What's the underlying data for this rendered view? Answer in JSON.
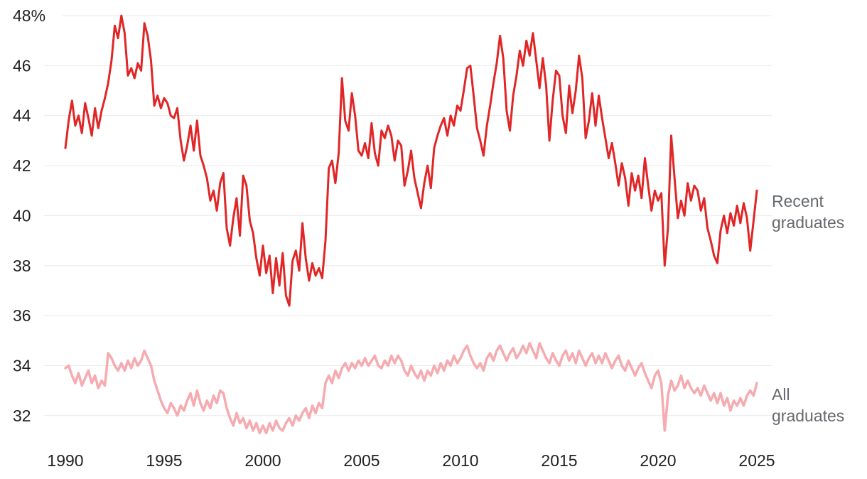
{
  "chart_data": {
    "type": "line",
    "x_start": 1990,
    "x_step": 0.1666667,
    "xlim": [
      1990,
      2025
    ],
    "ylim": [
      31,
      48.1
    ],
    "grid": true,
    "legend_position": "right-of-line",
    "x_ticks": [
      1990,
      1995,
      2000,
      2005,
      2010,
      2015,
      2020,
      2025
    ],
    "y_ticks": [
      {
        "value": 32,
        "label": "32"
      },
      {
        "value": 34,
        "label": "34"
      },
      {
        "value": 36,
        "label": "36"
      },
      {
        "value": 38,
        "label": "38"
      },
      {
        "value": 40,
        "label": "40"
      },
      {
        "value": 42,
        "label": "42"
      },
      {
        "value": 44,
        "label": "44"
      },
      {
        "value": 46,
        "label": "46"
      },
      {
        "value": 48,
        "label": "48%"
      }
    ],
    "colors": {
      "grid": "#e9e9e9",
      "axis_text": "#222222",
      "label_text": "#66696d"
    },
    "series": [
      {
        "name": "Recent graduates",
        "legend_lines": [
          "Recent",
          "graduates"
        ],
        "color": "#e02626",
        "width": 3,
        "values": [
          42.7,
          43.8,
          44.6,
          43.6,
          44.0,
          43.3,
          44.5,
          43.9,
          43.2,
          44.3,
          43.5,
          44.2,
          44.7,
          45.3,
          46.2,
          47.6,
          47.1,
          48.0,
          47.3,
          45.6,
          45.9,
          45.5,
          46.1,
          45.8,
          47.7,
          47.2,
          46.2,
          44.4,
          44.8,
          44.3,
          44.7,
          44.5,
          44.0,
          43.9,
          44.3,
          43.0,
          42.2,
          42.8,
          43.6,
          42.6,
          43.8,
          42.4,
          42.0,
          41.5,
          40.6,
          41.0,
          40.2,
          41.3,
          41.7,
          39.5,
          38.8,
          39.9,
          40.7,
          39.2,
          41.6,
          41.2,
          39.8,
          39.3,
          38.3,
          37.6,
          38.8,
          37.7,
          38.4,
          36.9,
          38.3,
          37.2,
          38.5,
          36.8,
          36.4,
          38.2,
          38.6,
          37.8,
          39.7,
          38.3,
          37.4,
          38.1,
          37.6,
          37.9,
          37.5,
          39.0,
          41.9,
          42.2,
          41.3,
          42.5,
          45.5,
          43.8,
          43.4,
          44.9,
          44.0,
          42.6,
          42.4,
          42.9,
          42.3,
          43.7,
          42.5,
          42.0,
          43.4,
          43.1,
          43.6,
          43.2,
          42.2,
          43.0,
          42.8,
          41.2,
          41.8,
          42.6,
          41.5,
          40.9,
          40.3,
          41.3,
          42.0,
          41.1,
          42.7,
          43.2,
          43.6,
          43.9,
          43.2,
          44.0,
          43.6,
          44.4,
          44.2,
          45.0,
          45.9,
          46.0,
          44.8,
          43.5,
          43.0,
          42.4,
          43.6,
          44.4,
          45.3,
          46.1,
          47.2,
          46.3,
          44.2,
          43.4,
          44.8,
          45.6,
          46.6,
          46.0,
          47.0,
          46.4,
          47.3,
          46.2,
          45.1,
          46.3,
          45.2,
          43.0,
          44.6,
          45.8,
          45.6,
          44.0,
          43.3,
          45.2,
          44.1,
          45.0,
          46.4,
          45.5,
          43.1,
          43.8,
          44.9,
          43.6,
          44.8,
          43.9,
          43.1,
          42.3,
          42.9,
          42.1,
          41.2,
          42.1,
          41.5,
          40.4,
          41.7,
          41.0,
          41.6,
          40.7,
          42.3,
          41.2,
          40.2,
          41.0,
          40.6,
          40.9,
          38.0,
          39.5,
          43.2,
          41.5,
          39.9,
          40.6,
          40.0,
          41.3,
          40.6,
          41.2,
          41.0,
          40.2,
          40.7,
          39.5,
          39.0,
          38.4,
          38.1,
          39.4,
          40.0,
          39.3,
          40.1,
          39.6,
          40.4,
          39.7,
          40.5,
          39.9,
          38.6,
          39.8,
          41.0
        ]
      },
      {
        "name": "All graduates",
        "legend_lines": [
          "All",
          "graduates"
        ],
        "color": "#f5abb0",
        "width": 3.5,
        "values": [
          33.9,
          34.0,
          33.6,
          33.3,
          33.7,
          33.2,
          33.5,
          33.8,
          33.3,
          33.6,
          33.1,
          33.4,
          33.2,
          34.5,
          34.3,
          34.0,
          33.8,
          34.1,
          33.8,
          34.2,
          33.9,
          34.3,
          34.0,
          34.2,
          34.6,
          34.3,
          34.0,
          33.4,
          33.0,
          32.6,
          32.3,
          32.1,
          32.5,
          32.3,
          32.0,
          32.4,
          32.2,
          32.6,
          32.9,
          32.4,
          33.0,
          32.5,
          32.2,
          32.6,
          32.3,
          32.8,
          32.5,
          33.0,
          32.9,
          32.3,
          31.9,
          31.6,
          32.1,
          31.7,
          31.9,
          31.5,
          31.8,
          31.4,
          31.7,
          31.3,
          31.6,
          31.3,
          31.7,
          31.4,
          31.8,
          31.5,
          31.4,
          31.7,
          31.9,
          31.6,
          32.0,
          31.8,
          32.1,
          32.3,
          31.9,
          32.4,
          32.1,
          32.5,
          32.3,
          33.3,
          33.6,
          33.3,
          33.8,
          33.5,
          33.9,
          34.1,
          33.8,
          34.1,
          33.9,
          34.2,
          34.0,
          34.3,
          34.0,
          34.2,
          34.4,
          34.0,
          33.9,
          34.2,
          34.0,
          34.4,
          34.1,
          34.4,
          34.2,
          33.8,
          33.6,
          34.0,
          33.7,
          33.5,
          33.8,
          33.4,
          33.8,
          33.6,
          34.0,
          33.7,
          34.1,
          33.8,
          34.2,
          34.0,
          34.4,
          34.1,
          34.3,
          34.6,
          34.8,
          34.4,
          34.1,
          33.9,
          34.1,
          33.8,
          34.3,
          34.5,
          34.2,
          34.6,
          34.8,
          34.5,
          34.2,
          34.5,
          34.7,
          34.3,
          34.5,
          34.8,
          34.5,
          34.9,
          34.6,
          34.3,
          34.9,
          34.6,
          34.3,
          34.1,
          34.5,
          34.2,
          34.0,
          34.4,
          34.6,
          34.2,
          34.5,
          34.1,
          34.6,
          34.3,
          34.0,
          34.3,
          34.5,
          34.1,
          34.4,
          34.1,
          34.5,
          34.2,
          33.9,
          34.2,
          34.4,
          34.0,
          33.8,
          34.2,
          33.9,
          33.6,
          33.9,
          34.1,
          33.7,
          33.4,
          33.1,
          33.6,
          33.8,
          33.3,
          31.4,
          32.8,
          33.4,
          33.0,
          33.2,
          33.6,
          33.1,
          33.4,
          33.1,
          32.9,
          33.1,
          32.8,
          33.2,
          32.9,
          32.6,
          32.9,
          32.5,
          32.9,
          32.4,
          32.7,
          32.2,
          32.6,
          32.4,
          32.7,
          32.4,
          32.8,
          33.0,
          32.8,
          33.3
        ]
      }
    ]
  }
}
